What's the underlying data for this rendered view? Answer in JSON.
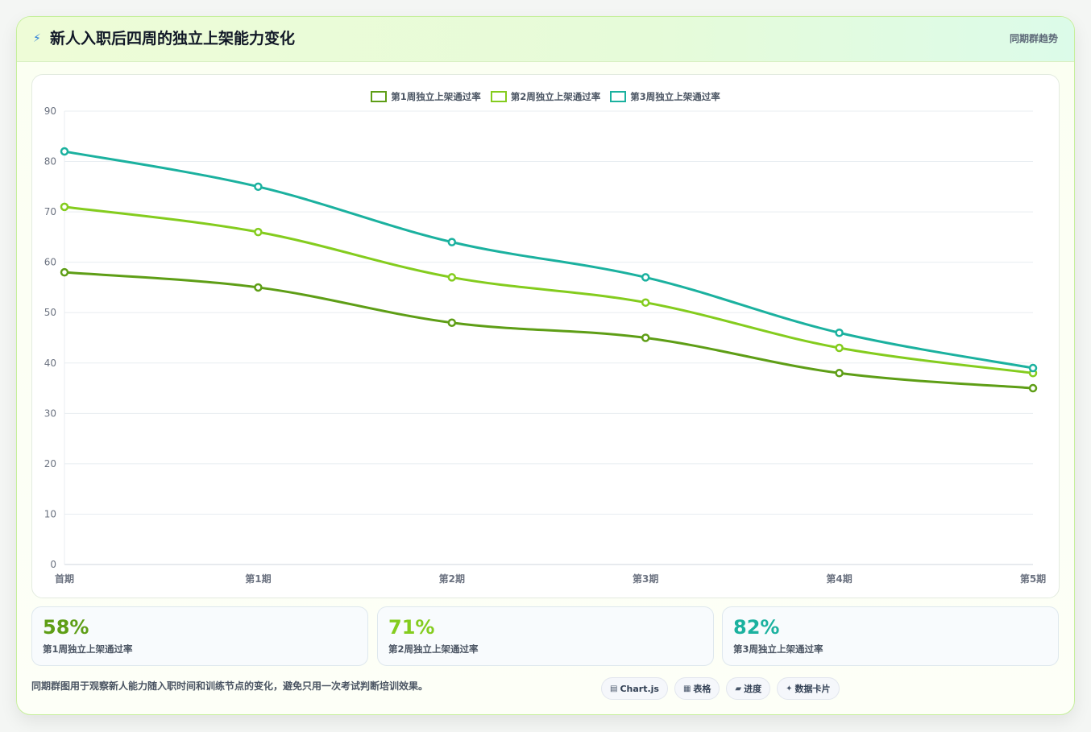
{
  "header": {
    "icon": "bolt-icon",
    "title": "新人入职后四周的独立上架能力变化",
    "subtitle": "同期群趋势"
  },
  "chart_data": {
    "type": "line",
    "title": "",
    "xlabel": "",
    "ylabel": "",
    "categories": [
      "首期",
      "第1期",
      "第2期",
      "第3期",
      "第4期",
      "第5期"
    ],
    "ylim": [
      0,
      90
    ],
    "yticks": [
      0,
      10,
      20,
      30,
      40,
      50,
      60,
      70,
      80,
      90
    ],
    "grid": true,
    "legend_position": "top-center",
    "series": [
      {
        "name": "第1周独立上架通过率",
        "color": "#5e9e16",
        "values": [
          58,
          55,
          48,
          45,
          38,
          35
        ]
      },
      {
        "name": "第2周独立上架通过率",
        "color": "#84cc1e",
        "values": [
          71,
          66,
          57,
          52,
          43,
          38
        ]
      },
      {
        "name": "第3周独立上架通过率",
        "color": "#1bb19f",
        "values": [
          82,
          75,
          64,
          57,
          46,
          39
        ]
      }
    ]
  },
  "stats": [
    {
      "value": "58%",
      "label": "第1周独立上架通过率",
      "color": "#5e9e16"
    },
    {
      "value": "71%",
      "label": "第2周独立上架通过率",
      "color": "#84cc1e"
    },
    {
      "value": "82%",
      "label": "第3周独立上架通过率",
      "color": "#1bb19f"
    }
  ],
  "footer": {
    "note": "同期群图用于观察新人能力随入职时间和训练节点的变化，避免只用一次考试判断培训效果。",
    "badges": [
      {
        "icon": "chart-icon",
        "label": "Chart.js"
      },
      {
        "icon": "table-icon",
        "label": "表格"
      },
      {
        "icon": "progress-icon",
        "label": "进度"
      },
      {
        "icon": "sparkle-icon",
        "label": "数据卡片"
      }
    ]
  }
}
